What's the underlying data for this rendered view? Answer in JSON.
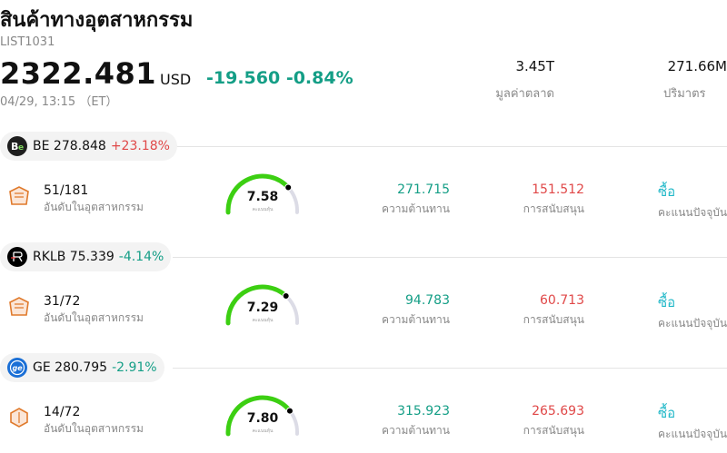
{
  "header": {
    "title": "สินค้าทางอุตสาหกรรม",
    "code": "LIST1031",
    "price": "2322.481",
    "currency": "USD",
    "change": "-19.560 -0.84%",
    "time": "04/29, 13:15 （ET）",
    "market_cap_value": "3.45T",
    "market_cap_label": "มูลค่าตลาด",
    "volume_value": "271.66M",
    "volume_label": "ปริมาตร"
  },
  "colors": {
    "up": "#e04848",
    "down": "#149e86",
    "rating": "#21b8c8",
    "gauge_green": "#3ccf12",
    "gauge_gray": "#dcdce6"
  },
  "stocks": [
    {
      "ticker": "BE",
      "price": "278.848",
      "change": "+23.18%",
      "direction": "up",
      "logo_icon": "be-logo-icon",
      "rank": "51/181",
      "rank_label": "อันดับในอุตสาหกรรม",
      "score": "7.58",
      "score_label": "คะแนนหุ้น",
      "score_fraction": 0.758,
      "resistance": "271.715",
      "resistance_label": "ความต้านทาน",
      "support": "151.512",
      "support_label": "การสนับสนุน",
      "rating": "ซื้อ",
      "rating_label": "คะแนนปัจจุบัน"
    },
    {
      "ticker": "RKLB",
      "price": "75.339",
      "change": "-4.14%",
      "direction": "down",
      "logo_icon": "rklb-logo-icon",
      "rank": "31/72",
      "rank_label": "อันดับในอุตสาหกรรม",
      "score": "7.29",
      "score_label": "คะแนนหุ้น",
      "score_fraction": 0.729,
      "resistance": "94.783",
      "resistance_label": "ความต้านทาน",
      "support": "60.713",
      "support_label": "การสนับสนุน",
      "rating": "ซื้อ",
      "rating_label": "คะแนนปัจจุบัน"
    },
    {
      "ticker": "GE",
      "price": "280.795",
      "change": "-2.91%",
      "direction": "down",
      "logo_icon": "ge-logo-icon",
      "rank": "14/72",
      "rank_label": "อันดับในอุตสาหกรรม",
      "score": "7.80",
      "score_label": "คะแนนหุ้น",
      "score_fraction": 0.78,
      "resistance": "315.923",
      "resistance_label": "ความต้านทาน",
      "support": "265.693",
      "support_label": "การสนับสนุน",
      "rating": "ซื้อ",
      "rating_label": "คะแนนปัจจุบัน"
    }
  ]
}
